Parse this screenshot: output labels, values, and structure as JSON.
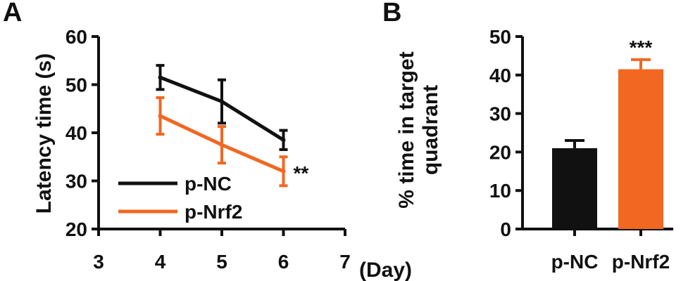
{
  "chart_data": [
    {
      "panel_label": "A",
      "type": "line",
      "ylabel": "Latency time (s)",
      "xlabel": "(Day)",
      "xlim": [
        3,
        7
      ],
      "ylim": [
        20,
        60
      ],
      "xticks": [
        "3",
        "4",
        "5",
        "6",
        "7"
      ],
      "yticks": [
        "20",
        "30",
        "40",
        "50",
        "60"
      ],
      "x": [
        4,
        5,
        6
      ],
      "series": [
        {
          "name": "p-NC",
          "color": "#111111",
          "values": [
            51.5,
            46.5,
            38.5
          ],
          "errors": [
            2.5,
            4.5,
            2.0
          ]
        },
        {
          "name": "p-Nrf2",
          "color": "#f26722",
          "values": [
            43.5,
            37.5,
            32.0
          ],
          "errors": [
            3.8,
            3.8,
            3.0
          ]
        }
      ],
      "significance": "**",
      "legend": "bottom-left"
    },
    {
      "panel_label": "B",
      "type": "bar",
      "ylabel": "% time in target quadrant",
      "ylim": [
        0,
        50
      ],
      "yticks": [
        "0",
        "10",
        "20",
        "30",
        "40",
        "50"
      ],
      "categories": [
        "p-NC",
        "p-Nrf2"
      ],
      "values": [
        21,
        41.5
      ],
      "errors": [
        2.0,
        2.5
      ],
      "colors": [
        "#111111",
        "#f26722"
      ],
      "significance": [
        "",
        "***"
      ]
    }
  ]
}
